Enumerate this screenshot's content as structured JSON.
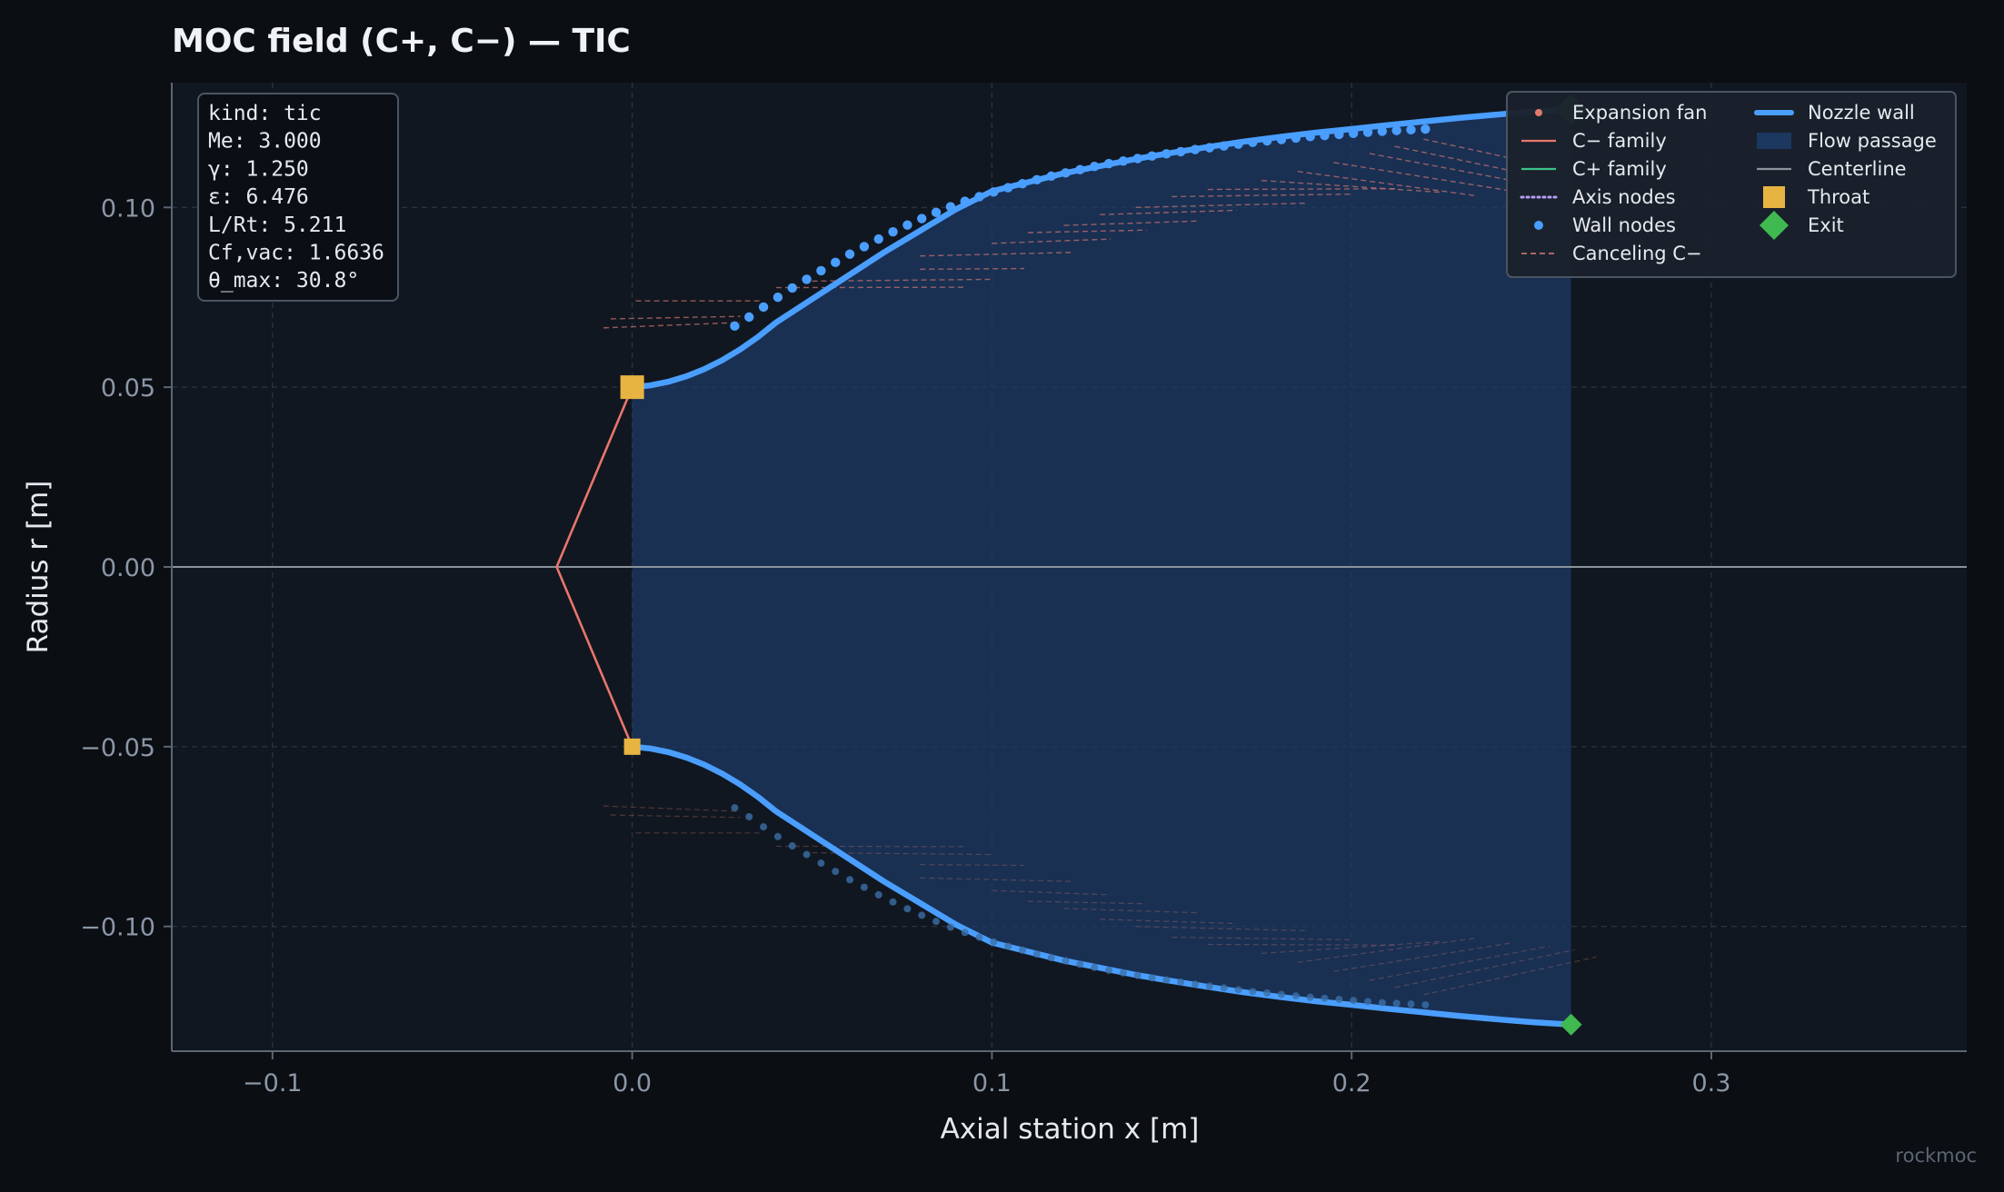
{
  "chart_data": {
    "type": "line",
    "title": "MOC field (C+, C−) — TIC",
    "xlabel": "Axial station  x  [m]",
    "ylabel": "Radius  r  [m]",
    "xlim": [
      -0.128,
      0.371
    ],
    "ylim": [
      -0.1347,
      0.1347
    ],
    "xticks": [
      -0.1,
      0.0,
      0.1,
      0.2,
      0.3
    ],
    "xtick_labels": [
      "−0.1",
      "0.0",
      "0.1",
      "0.2",
      "0.3"
    ],
    "yticks": [
      0.1,
      0.05,
      0.0,
      -0.05,
      -0.1
    ],
    "ytick_labels": [
      "0.10",
      "0.05",
      "0.00",
      "−0.05",
      "−0.10"
    ],
    "grid": true,
    "legend_placement": "top-right",
    "legend": {
      "items": [
        {
          "label": "Expansion fan",
          "kind": "fan",
          "color": "#e07a6c"
        },
        {
          "label": "C− family",
          "kind": "line",
          "color": "#e8766c"
        },
        {
          "label": "C+ family",
          "kind": "line",
          "color": "#3cc38a"
        },
        {
          "label": "Axis nodes",
          "kind": "dotted",
          "color": "#b79cf5"
        },
        {
          "label": "Wall nodes",
          "kind": "dot",
          "color": "#4a9eff"
        },
        {
          "label": "Canceling C−",
          "kind": "dashed",
          "color": "#c0706c"
        },
        {
          "label": "Nozzle wall",
          "kind": "thick",
          "color": "#4a9eff"
        },
        {
          "label": "Flow passage",
          "kind": "patch",
          "color": "#1d3a66"
        },
        {
          "label": "Centerline",
          "kind": "line",
          "color": "#8a939c"
        },
        {
          "label": "Throat",
          "kind": "square",
          "color": "#e7b442"
        },
        {
          "label": "Exit",
          "kind": "diamond",
          "color": "#3fb950"
        }
      ]
    },
    "info_box": [
      "kind: tic",
      "Me: 3.000",
      "γ: 1.250",
      "ε: 6.476",
      "L/Rt: 5.211",
      "Cf,vac: 1.6636",
      "θ_max: 30.8°"
    ],
    "colors": {
      "wall": "#4a9eff",
      "passage": "#1d3a66",
      "centerline": "#8a939c",
      "throat": "#e7b442",
      "exit": "#3fb950",
      "fan": "#e8766c",
      "canceling": "#c0706c"
    },
    "series": [
      {
        "name": "Nozzle wall",
        "x": [
          0.0,
          0.005,
          0.01,
          0.015,
          0.02,
          0.025,
          0.03,
          0.035,
          0.04,
          0.05,
          0.06,
          0.07,
          0.08,
          0.09,
          0.1,
          0.11,
          0.12,
          0.13,
          0.14,
          0.15,
          0.16,
          0.17,
          0.18,
          0.19,
          0.2,
          0.21,
          0.22,
          0.23,
          0.24,
          0.25,
          0.261
        ],
        "y": [
          0.05,
          0.0505,
          0.0515,
          0.053,
          0.055,
          0.0575,
          0.0605,
          0.064,
          0.068,
          0.0745,
          0.081,
          0.0875,
          0.0935,
          0.0995,
          0.1045,
          0.107,
          0.1095,
          0.1115,
          0.1135,
          0.1152,
          0.1168,
          0.1183,
          0.1196,
          0.1208,
          0.1218,
          0.1229,
          0.1239,
          0.1249,
          0.1258,
          0.1266,
          0.1273
        ]
      },
      {
        "name": "Wall nodes",
        "x": [
          0.0285,
          0.0325,
          0.0365,
          0.0405,
          0.0445,
          0.0485,
          0.0525,
          0.0565,
          0.0605,
          0.0645,
          0.0685,
          0.0725,
          0.0765,
          0.0805,
          0.0845,
          0.0885,
          0.0925,
          0.0965,
          0.1005,
          0.1045,
          0.1085,
          0.1125,
          0.1165,
          0.1205,
          0.1245,
          0.1285,
          0.1325,
          0.1365,
          0.1405,
          0.1445,
          0.1485,
          0.1525,
          0.1565,
          0.1605,
          0.1645,
          0.1685,
          0.1725,
          0.1765,
          0.1805,
          0.1845,
          0.1885,
          0.1925,
          0.1965,
          0.2005,
          0.2045,
          0.2085,
          0.2125,
          0.2165,
          0.2205
        ],
        "y": [
          0.067,
          0.0695,
          0.0723,
          0.075,
          0.0776,
          0.08,
          0.0824,
          0.0847,
          0.087,
          0.0891,
          0.0912,
          0.0932,
          0.0951,
          0.0969,
          0.0986,
          0.1002,
          0.1017,
          0.103,
          0.1043,
          0.1055,
          0.1066,
          0.1077,
          0.1087,
          0.1096,
          0.1105,
          0.1114,
          0.1122,
          0.1129,
          0.1136,
          0.1143,
          0.1149,
          0.1155,
          0.1161,
          0.1166,
          0.1171,
          0.1176,
          0.1181,
          0.1185,
          0.1189,
          0.1193,
          0.1197,
          0.12,
          0.1203,
          0.1206,
          0.1209,
          0.1212,
          0.1214,
          0.1216,
          0.1218
        ]
      },
      {
        "name": "C− family",
        "x": [
          0.0,
          -0.021,
          0.0
        ],
        "y": [
          0.05,
          0.0,
          -0.05
        ]
      },
      {
        "name": "Centerline",
        "x": [
          -0.128,
          0.371
        ],
        "y": [
          0.0,
          0.0
        ]
      }
    ],
    "canceling_lines": [
      {
        "x0": -0.008,
        "y0": 0.0665,
        "x1": 0.03,
        "y1": 0.068
      },
      {
        "x0": -0.006,
        "y0": 0.069,
        "x1": 0.03,
        "y1": 0.0697
      },
      {
        "x0": 0.001,
        "y0": 0.074,
        "x1": 0.036,
        "y1": 0.074
      },
      {
        "x0": 0.04,
        "y0": 0.0777,
        "x1": 0.093,
        "y1": 0.0778
      },
      {
        "x0": 0.05,
        "y0": 0.0795,
        "x1": 0.1,
        "y1": 0.08
      },
      {
        "x0": 0.08,
        "y0": 0.0828,
        "x1": 0.109,
        "y1": 0.083
      },
      {
        "x0": 0.08,
        "y0": 0.0865,
        "x1": 0.123,
        "y1": 0.0875
      },
      {
        "x0": 0.1,
        "y0": 0.09,
        "x1": 0.133,
        "y1": 0.0912
      },
      {
        "x0": 0.11,
        "y0": 0.093,
        "x1": 0.143,
        "y1": 0.0937
      },
      {
        "x0": 0.12,
        "y0": 0.095,
        "x1": 0.157,
        "y1": 0.0962
      },
      {
        "x0": 0.13,
        "y0": 0.098,
        "x1": 0.168,
        "y1": 0.0992
      },
      {
        "x0": 0.14,
        "y0": 0.1,
        "x1": 0.188,
        "y1": 0.1012
      },
      {
        "x0": 0.15,
        "y0": 0.103,
        "x1": 0.2,
        "y1": 0.1037
      },
      {
        "x0": 0.16,
        "y0": 0.105,
        "x1": 0.213,
        "y1": 0.1052
      },
      {
        "x0": 0.175,
        "y0": 0.1075,
        "x1": 0.225,
        "y1": 0.1042
      },
      {
        "x0": 0.185,
        "y0": 0.11,
        "x1": 0.235,
        "y1": 0.1032
      },
      {
        "x0": 0.195,
        "y0": 0.1125,
        "x1": 0.245,
        "y1": 0.1045
      },
      {
        "x0": 0.205,
        "y0": 0.115,
        "x1": 0.255,
        "y1": 0.1055
      },
      {
        "x0": 0.212,
        "y0": 0.117,
        "x1": 0.262,
        "y1": 0.1065
      },
      {
        "x0": 0.22,
        "y0": 0.119,
        "x1": 0.268,
        "y1": 0.1085
      }
    ],
    "throat": {
      "x": 0.0,
      "r": 0.05
    },
    "exit": {
      "x": 0.261,
      "r": 0.1273
    },
    "watermark": "rockmoc"
  }
}
